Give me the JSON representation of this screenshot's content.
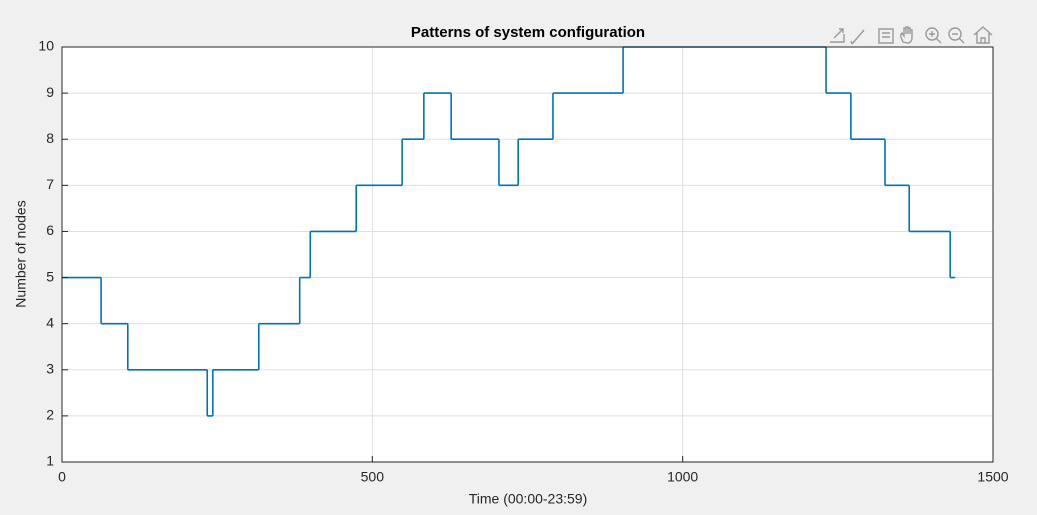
{
  "chart_data": {
    "type": "line",
    "drawstyle": "steps-post",
    "title": "Patterns of system configuration",
    "xlabel": "Time (00:00-23:59)",
    "ylabel": "Number of nodes",
    "x": [
      0,
      63,
      106,
      234,
      243,
      317,
      383,
      400,
      474,
      548,
      583,
      627,
      704,
      735,
      791,
      904,
      1231,
      1271,
      1326,
      1365,
      1431,
      1439
    ],
    "series": [
      {
        "name": "Number of nodes",
        "color": "#0072bd",
        "values": [
          5,
          4,
          3,
          2,
          3,
          4,
          5,
          6,
          7,
          8,
          9,
          8,
          7,
          8,
          9,
          10,
          9,
          8,
          7,
          6,
          5,
          5
        ]
      }
    ],
    "xlim": [
      0,
      1500
    ],
    "xticks": [
      0,
      500,
      1000,
      1500
    ],
    "ylim": [
      1,
      10
    ],
    "yticks": [
      1,
      2,
      3,
      4,
      5,
      6,
      7,
      8,
      9,
      10
    ],
    "grid": true
  }
}
